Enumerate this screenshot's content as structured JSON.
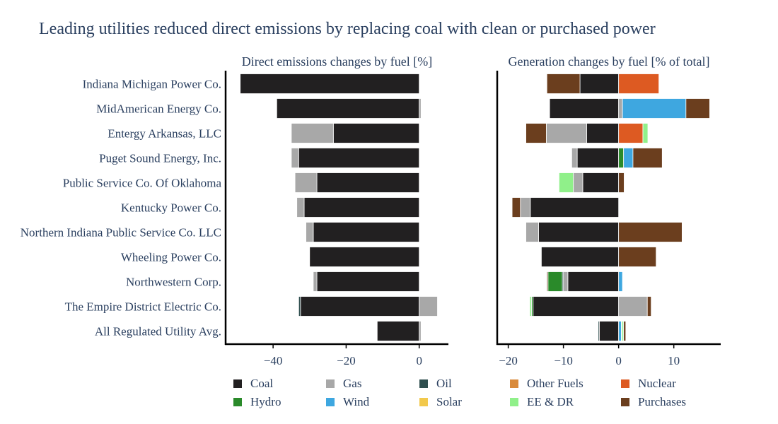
{
  "title": "Leading utilities reduced direct emissions by replacing coal with clean or purchased power",
  "colors": {
    "Coal": "#222021",
    "Gas": "#a8a8a8",
    "Oil": "#2f4f4f",
    "Hydro": "#2a8a2a",
    "Wind": "#3ea7e0",
    "Solar": "#f2c94c",
    "Other Fuels": "#d98a3a",
    "Nuclear": "#dd5a22",
    "EE & DR": "#90f08a",
    "Purchases": "#6b3e1e"
  },
  "legend": [
    "Coal",
    "Gas",
    "Oil",
    "Other Fuels",
    "Nuclear",
    "Hydro",
    "Wind",
    "Solar",
    "EE & DR",
    "Purchases"
  ],
  "chart_data": [
    {
      "type": "bar",
      "orientation": "horizontal",
      "barmode": "relative",
      "title": "Direct emissions changes by fuel [%]",
      "categories": [
        "Indiana Michigan Power Co.",
        "MidAmerican Energy Co.",
        "Entergy Arkansas, LLC",
        "Puget Sound Energy, Inc.",
        "Public Service Co. Of Oklahoma",
        "Kentucky Power Co.",
        "Northern Indiana Public Service Co. LLC",
        "Wheeling Power Co.",
        "Northwestern Corp.",
        "The Empire District Electric Co.",
        "All Regulated Utility Avg."
      ],
      "xlim": [
        -53,
        8
      ],
      "xticks": [
        -40,
        -20,
        0
      ],
      "xtick_labels": [
        "−40",
        "−20",
        "0"
      ],
      "series": [
        {
          "name": "Coal",
          "values": [
            -49,
            -39,
            -23.5,
            -33,
            -28,
            -31.5,
            -29,
            -30,
            -28,
            -32.5,
            -11.5
          ]
        },
        {
          "name": "Gas",
          "values": [
            0,
            0.5,
            -11.5,
            -2,
            -6,
            -2,
            -2,
            0,
            -1,
            5,
            0.5
          ]
        },
        {
          "name": "Oil",
          "values": [
            0,
            0,
            0,
            0,
            0,
            0,
            0,
            0,
            0,
            -0.5,
            0
          ]
        }
      ]
    },
    {
      "type": "bar",
      "orientation": "horizontal",
      "barmode": "relative",
      "title": "Generation changes by fuel [% of total]",
      "categories": [
        "Indiana Michigan Power Co.",
        "MidAmerican Energy Co.",
        "Entergy Arkansas, LLC",
        "Puget Sound Energy, Inc.",
        "Public Service Co. Of Oklahoma",
        "Kentucky Power Co.",
        "Northern Indiana Public Service Co. LLC",
        "Wheeling Power Co.",
        "Northwestern Corp.",
        "The Empire District Electric Co.",
        "All Regulated Utility Avg."
      ],
      "xlim": [
        -22,
        18.5
      ],
      "xticks": [
        -20,
        -10,
        0,
        10
      ],
      "xtick_labels": [
        "−20",
        "−10",
        "0",
        "10"
      ],
      "series": [
        {
          "name": "Coal",
          "values": [
            -7,
            -12.5,
            -5.8,
            -7.5,
            -6.5,
            -16,
            -14.5,
            -14,
            -9.2,
            -15.5,
            -3.5
          ]
        },
        {
          "name": "Gas",
          "values": [
            0,
            0.7,
            -7.3,
            -1,
            -1.7,
            -1.8,
            -2.3,
            0,
            -0.8,
            5.2,
            0
          ]
        },
        {
          "name": "Oil",
          "values": [
            0,
            0,
            0,
            0,
            0,
            0,
            0,
            0,
            -0.2,
            0,
            -0.2
          ]
        },
        {
          "name": "Hydro",
          "values": [
            0,
            0,
            0,
            0.9,
            0,
            0,
            0,
            0,
            -2.6,
            -0.3,
            0
          ]
        },
        {
          "name": "Wind",
          "values": [
            0,
            11.5,
            0,
            1.7,
            0,
            0,
            0,
            0,
            0.7,
            0,
            0.5
          ]
        },
        {
          "name": "Solar",
          "values": [
            0,
            0,
            0,
            0,
            0,
            0,
            0,
            0,
            0,
            0,
            0.1
          ]
        },
        {
          "name": "Other Fuels",
          "values": [
            0,
            0,
            0,
            0,
            0,
            0,
            0,
            0,
            0,
            0,
            0
          ]
        },
        {
          "name": "Nuclear",
          "values": [
            7.3,
            0,
            4.4,
            0,
            0,
            0,
            0,
            0,
            0,
            0,
            0
          ]
        },
        {
          "name": "EE & DR",
          "values": [
            0,
            0,
            0.9,
            0,
            -2.6,
            0,
            0,
            0,
            0,
            -0.3,
            0.3
          ]
        },
        {
          "name": "Purchases",
          "values": [
            -6,
            4.3,
            -3.7,
            5.3,
            1,
            -1.5,
            11.5,
            6.8,
            -0.2,
            0.7,
            0.4
          ]
        }
      ]
    }
  ]
}
